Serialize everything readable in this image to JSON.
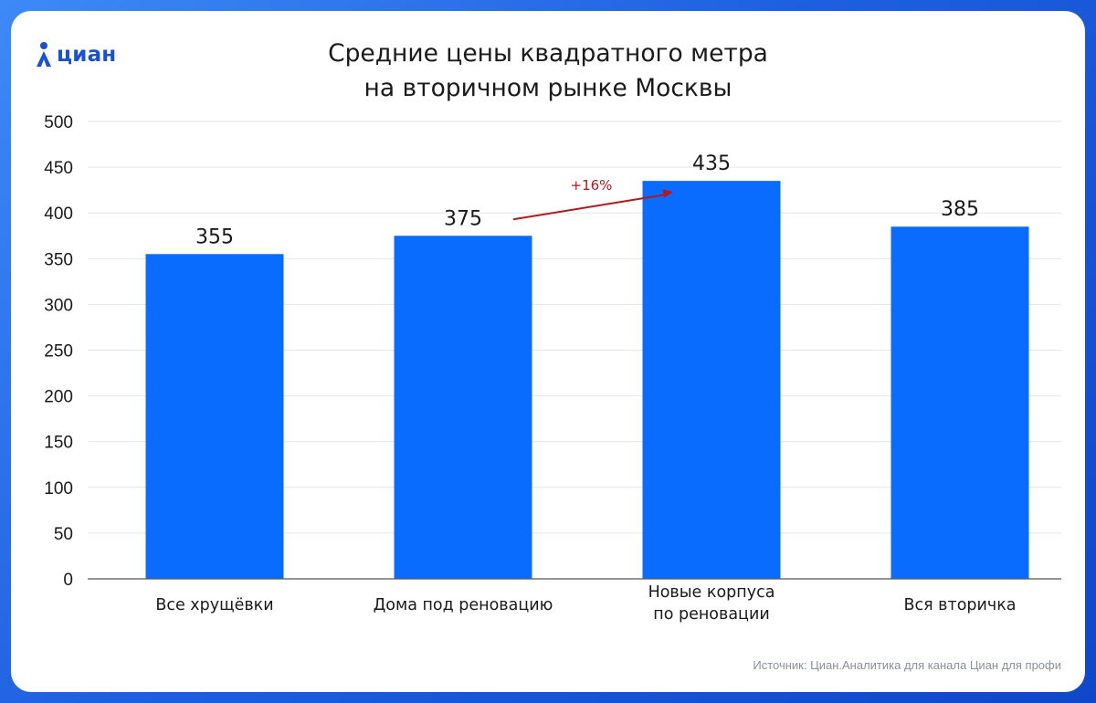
{
  "brand": {
    "name": "циан"
  },
  "title_lines": [
    "Средние цены квадратного метра",
    "на вторичном рынке Москвы"
  ],
  "source": "Источник: Циан.Аналитика для канала Циан для профи",
  "colors": {
    "bar": "#0a6cff",
    "annotation": "#b11a1a",
    "grid": "#e6e6e6",
    "axis": "#555555"
  },
  "chart_data": {
    "type": "bar",
    "categories": [
      "Все хрущёвки",
      "Дома под реновацию",
      [
        "Новые корпуса",
        "по реновации"
      ],
      "Вся вторичка"
    ],
    "values": [
      355,
      375,
      435,
      385
    ],
    "data_labels": [
      "355",
      "375",
      "435",
      "385"
    ],
    "ylim": [
      0,
      500
    ],
    "yticks": [
      0,
      50,
      100,
      150,
      200,
      250,
      300,
      350,
      400,
      450,
      500
    ],
    "grid": true,
    "annotation": {
      "text": "+16%",
      "from_category": 1,
      "to_category": 2
    }
  }
}
